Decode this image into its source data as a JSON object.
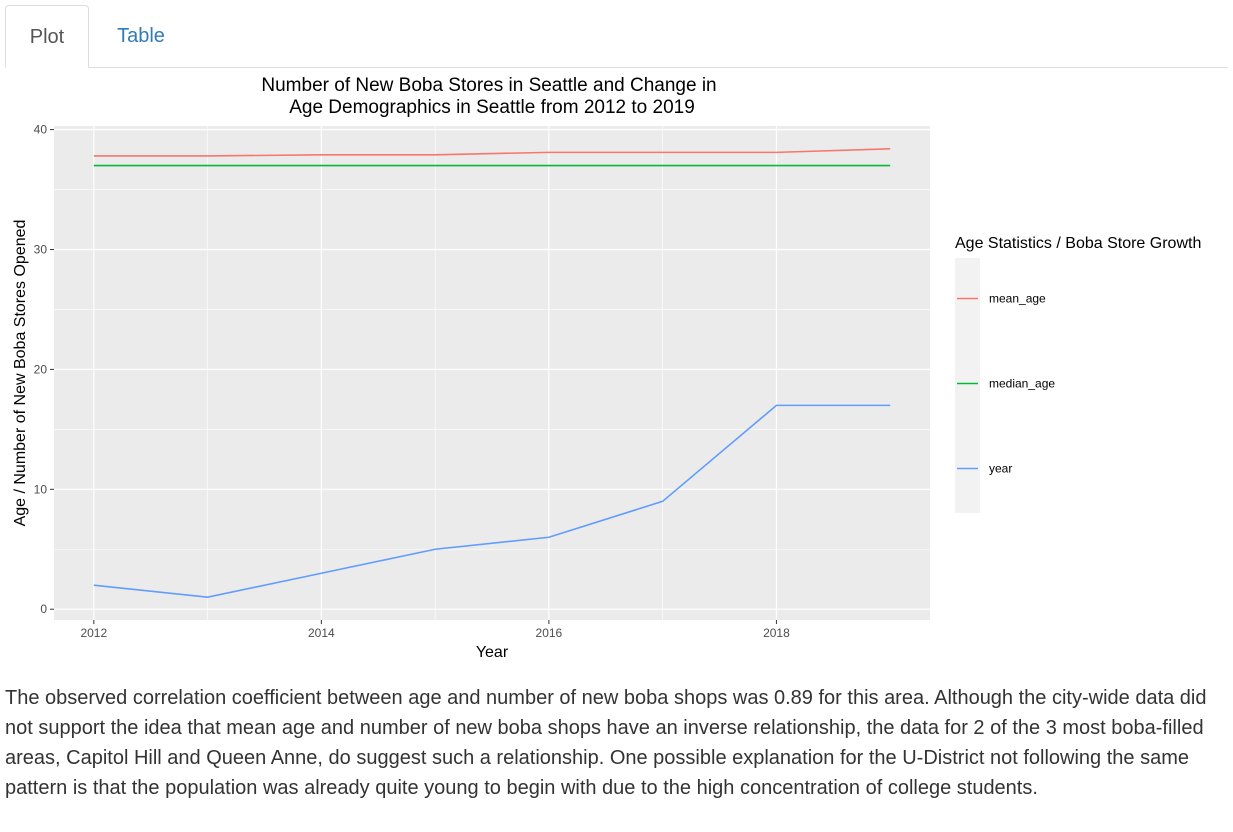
{
  "tabs": [
    {
      "label": "Plot",
      "active": true
    },
    {
      "label": "Table",
      "active": false
    }
  ],
  "chart_data": {
    "type": "line",
    "title_lines": [
      "Number of New Boba Stores in Seattle and Change in",
      "Age Demographics in Seattle from 2012 to 2019"
    ],
    "xlabel": "Year",
    "ylabel": "Age / Number of New Boba Stores Opened",
    "x": [
      2012,
      2013,
      2014,
      2015,
      2016,
      2017,
      2018,
      2019
    ],
    "xlim": [
      2011.65,
      2019.35
    ],
    "ylim": [
      -0.9,
      40.3
    ],
    "x_ticks": [
      "2012",
      "2014",
      "2016",
      "2018"
    ],
    "y_ticks": [
      "0",
      "10",
      "20",
      "30",
      "40"
    ],
    "legend_title": "Age Statistics / Boba Store Growth",
    "legend_position": "right",
    "grid": true,
    "panel_color": "#ebebeb",
    "series": [
      {
        "name": "mean_age",
        "color": "#f8766d",
        "values": [
          37.8,
          37.8,
          37.9,
          37.9,
          38.1,
          38.1,
          38.1,
          38.4
        ]
      },
      {
        "name": "median_age",
        "color": "#00ba38",
        "values": [
          37.0,
          37.0,
          37.0,
          37.0,
          37.0,
          37.0,
          37.0,
          37.0
        ]
      },
      {
        "name": "year",
        "color": "#619cff",
        "values": [
          2,
          1,
          3,
          5,
          6,
          9,
          17,
          17
        ]
      }
    ]
  },
  "narrative": "The observed correlation coefficient between age and number of new boba shops was 0.89 for this area. Although the city-wide data did not support the idea that mean age and number of new boba shops have an inverse relationship, the data for 2 of the 3 most boba-filled areas, Capitol Hill and Queen Anne, do suggest such a relationship. One possible explanation for the U-District not following the same pattern is that the population was already quite young to begin with due to the high concentration of college students."
}
